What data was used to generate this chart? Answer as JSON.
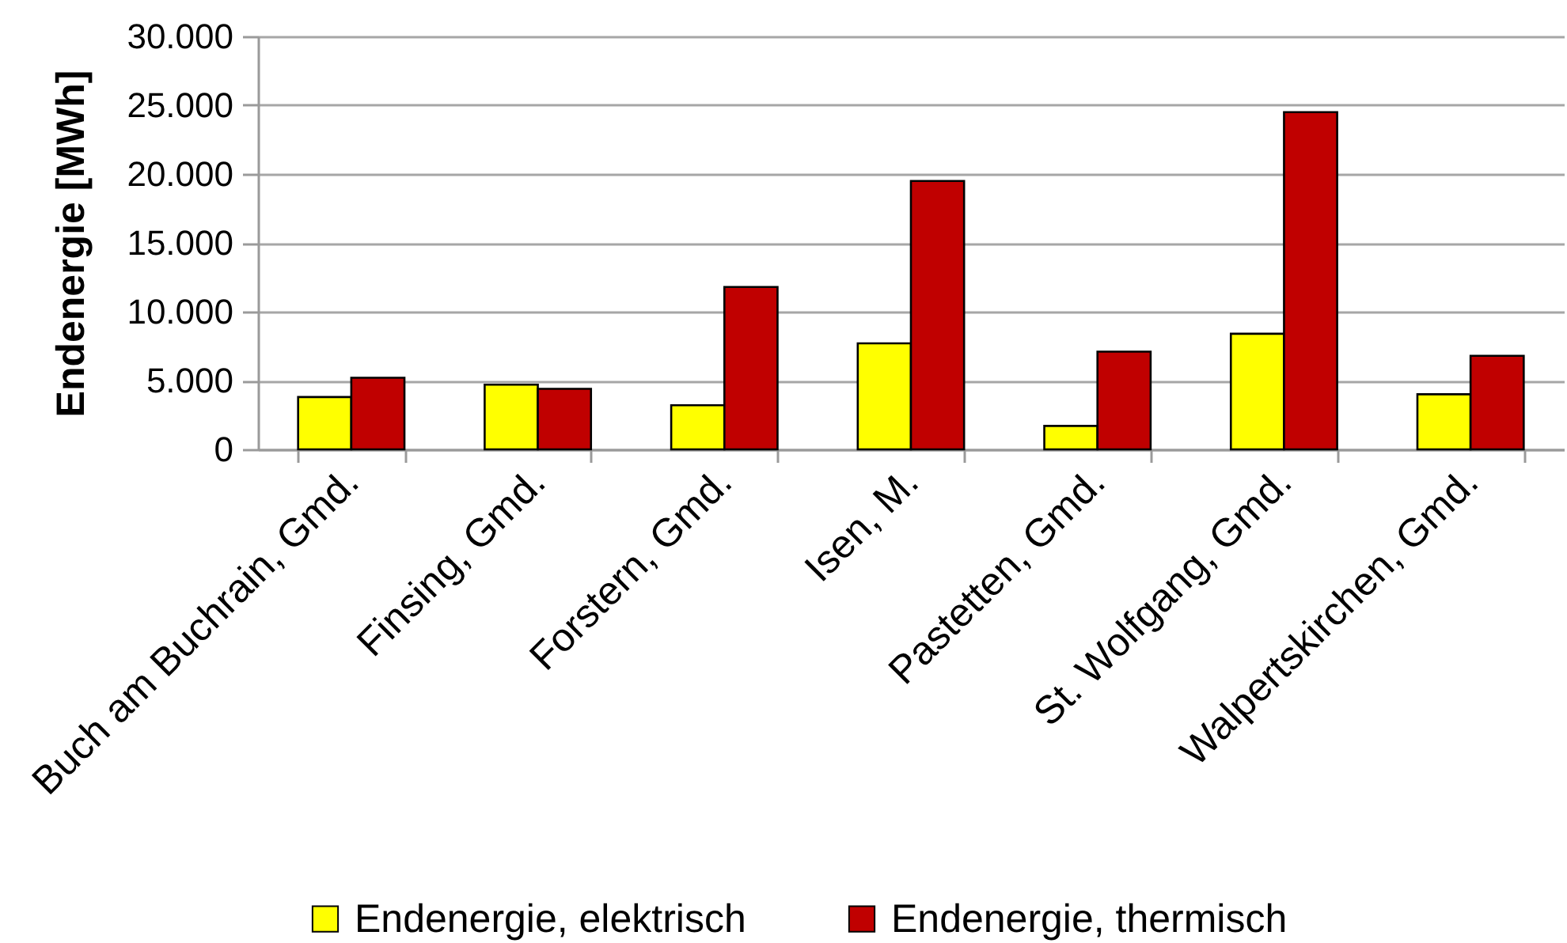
{
  "chart_data": {
    "type": "bar",
    "ylabel": "Endenergie [MWh]",
    "categories": [
      "Buch am Buchrain, Gmd.",
      "Finsing, Gmd.",
      "Forstern, Gmd.",
      "Isen, M.",
      "Pastetten, Gmd.",
      "St. Wolfgang, Gmd.",
      "Walpertskirchen, Gmd."
    ],
    "series": [
      {
        "name": "Endenergie, elektrisch",
        "color": "#ffff00",
        "values": [
          3800,
          4700,
          3200,
          7700,
          1700,
          8400,
          4000
        ]
      },
      {
        "name": "Endenergie, thermisch",
        "color": "#c00000",
        "values": [
          5200,
          4400,
          11800,
          19500,
          7100,
          24500,
          6800
        ]
      }
    ],
    "ylim": [
      0,
      30000
    ],
    "yticks": [
      0,
      {
        "value": 5000,
        "label": "5.000"
      },
      {
        "value": 10000,
        "label": "10.000"
      },
      {
        "value": 15000,
        "label": "15.000"
      },
      {
        "value": 20000,
        "label": "20.000"
      },
      {
        "value": 25000,
        "label": "25.000"
      },
      {
        "value": 30000,
        "label": "30.000"
      }
    ],
    "grid": "y",
    "legend": "bottom"
  }
}
